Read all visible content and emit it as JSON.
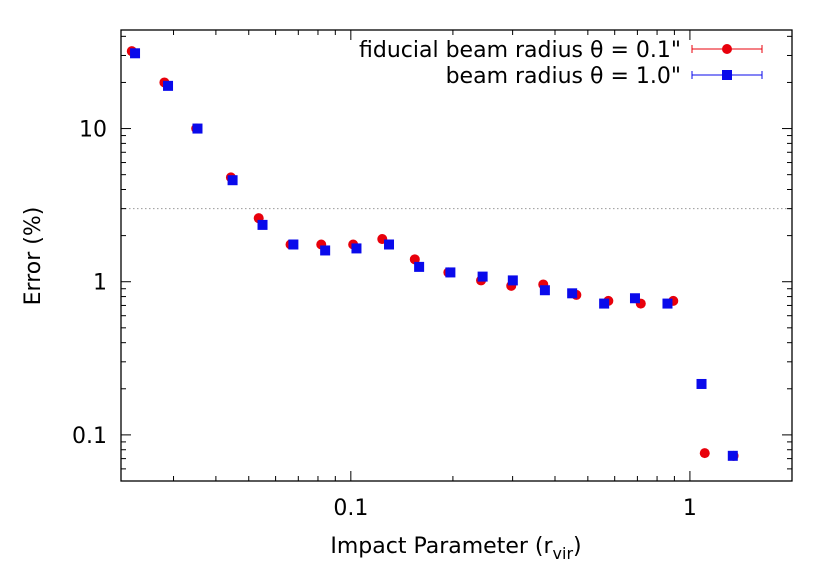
{
  "chart_data": {
    "type": "scatter",
    "xlabel": "Impact Parameter (r",
    "xlabel_sub": "vir",
    "xlabel_close": ")",
    "ylabel": "Error (%)",
    "x_scale": "log",
    "y_scale": "log",
    "xlim": [
      0.021,
      2.0
    ],
    "ylim": [
      0.05,
      44
    ],
    "x_ticks": [
      {
        "value": 0.1,
        "label": "0.1"
      },
      {
        "value": 1,
        "label": "1"
      }
    ],
    "y_ticks": [
      {
        "value": 0.1,
        "label": "0.1"
      },
      {
        "value": 1,
        "label": "1"
      },
      {
        "value": 10,
        "label": "10"
      }
    ],
    "reference_line": {
      "y": 3.0,
      "style": "dotted",
      "color": "#999999"
    },
    "legend_position": "top-right",
    "series": [
      {
        "name": "fiducial beam radius θ = 0.1\"",
        "marker": "circle",
        "color": "#e8000b",
        "points": [
          [
            0.0226,
            32
          ],
          [
            0.0282,
            20
          ],
          [
            0.035,
            10
          ],
          [
            0.0443,
            4.8
          ],
          [
            0.0535,
            2.6
          ],
          [
            0.0664,
            1.75
          ],
          [
            0.0818,
            1.75
          ],
          [
            0.1016,
            1.75
          ],
          [
            0.1238,
            1.9
          ],
          [
            0.1544,
            1.4
          ],
          [
            0.1939,
            1.15
          ],
          [
            0.2421,
            1.02
          ],
          [
            0.2972,
            0.94
          ],
          [
            0.3694,
            0.96
          ],
          [
            0.4625,
            0.82
          ],
          [
            0.5747,
            0.75
          ],
          [
            0.7163,
            0.72
          ],
          [
            0.8931,
            0.75
          ],
          [
            1.1059,
            0.076
          ],
          [
            1.3448,
            0.073
          ]
        ]
      },
      {
        "name": "beam radius θ = 1.0\"",
        "marker": "square",
        "color": "#0a0aeb",
        "points": [
          [
            0.0231,
            31
          ],
          [
            0.0289,
            19
          ],
          [
            0.0353,
            10
          ],
          [
            0.0448,
            4.6
          ],
          [
            0.0549,
            2.35
          ],
          [
            0.0677,
            1.75
          ],
          [
            0.084,
            1.6
          ],
          [
            0.1039,
            1.65
          ],
          [
            0.1296,
            1.75
          ],
          [
            0.159,
            1.25
          ],
          [
            0.1966,
            1.15
          ],
          [
            0.2447,
            1.08
          ],
          [
            0.3004,
            1.02
          ],
          [
            0.3735,
            0.88
          ],
          [
            0.4495,
            0.84
          ],
          [
            0.5585,
            0.72
          ],
          [
            0.6886,
            0.78
          ],
          [
            0.8586,
            0.72
          ],
          [
            1.0819,
            0.215
          ],
          [
            1.3379,
            0.073
          ]
        ]
      }
    ]
  }
}
